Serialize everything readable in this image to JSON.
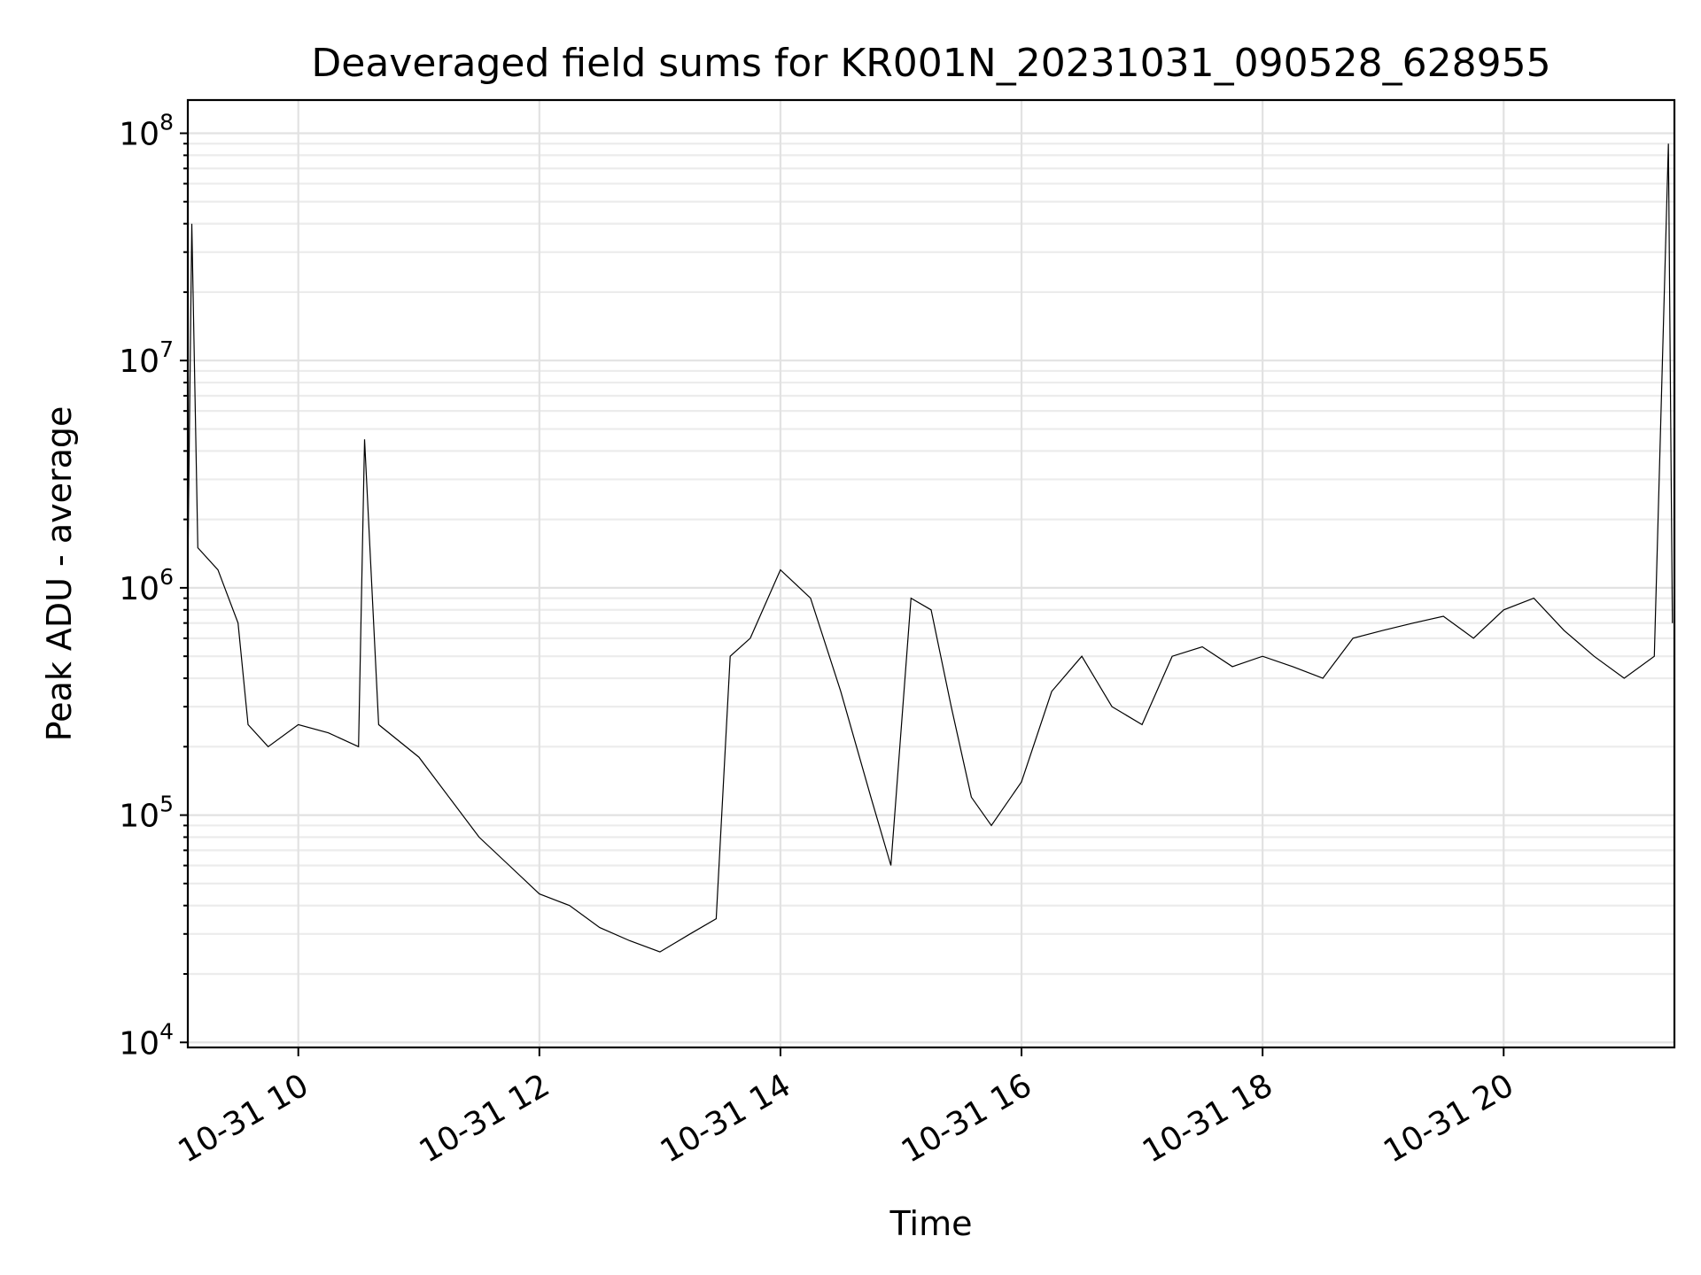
{
  "chart_data": {
    "type": "line",
    "title": "Deaveraged field sums for KR001N_20231031_090528_628955",
    "xlabel": "Time",
    "ylabel": "Peak ADU - average",
    "yscale": "log",
    "ylim": [
      9500,
      140000000
    ],
    "xlim": [
      "2023-10-31 09:05",
      "2023-10-31 21:25"
    ],
    "grid": "on",
    "x_ticks": [
      {
        "value": "2023-10-31 10:00",
        "label": "10-31 10"
      },
      {
        "value": "2023-10-31 12:00",
        "label": "10-31 12"
      },
      {
        "value": "2023-10-31 14:00",
        "label": "10-31 14"
      },
      {
        "value": "2023-10-31 16:00",
        "label": "10-31 16"
      },
      {
        "value": "2023-10-31 18:00",
        "label": "10-31 18"
      },
      {
        "value": "2023-10-31 20:00",
        "label": "10-31 20"
      }
    ],
    "y_ticks": [
      {
        "value": 10000,
        "base": "10",
        "exp": "4"
      },
      {
        "value": 100000,
        "base": "10",
        "exp": "5"
      },
      {
        "value": 1000000,
        "base": "10",
        "exp": "6"
      },
      {
        "value": 10000000,
        "base": "10",
        "exp": "7"
      },
      {
        "value": 100000000,
        "base": "10",
        "exp": "8"
      }
    ],
    "series": [
      {
        "color": "#000000",
        "x": [
          "2023-10-31 09:05",
          "2023-10-31 09:07",
          "2023-10-31 09:10",
          "2023-10-31 09:20",
          "2023-10-31 09:30",
          "2023-10-31 09:35",
          "2023-10-31 09:45",
          "2023-10-31 10:00",
          "2023-10-31 10:15",
          "2023-10-31 10:30",
          "2023-10-31 10:33",
          "2023-10-31 10:40",
          "2023-10-31 11:00",
          "2023-10-31 11:15",
          "2023-10-31 11:30",
          "2023-10-31 11:45",
          "2023-10-31 12:00",
          "2023-10-31 12:15",
          "2023-10-31 12:30",
          "2023-10-31 12:45",
          "2023-10-31 13:00",
          "2023-10-31 13:15",
          "2023-10-31 13:28",
          "2023-10-31 13:35",
          "2023-10-31 13:45",
          "2023-10-31 14:00",
          "2023-10-31 14:15",
          "2023-10-31 14:30",
          "2023-10-31 14:45",
          "2023-10-31 14:55",
          "2023-10-31 15:05",
          "2023-10-31 15:15",
          "2023-10-31 15:25",
          "2023-10-31 15:35",
          "2023-10-31 15:45",
          "2023-10-31 16:00",
          "2023-10-31 16:15",
          "2023-10-31 16:30",
          "2023-10-31 16:45",
          "2023-10-31 17:00",
          "2023-10-31 17:15",
          "2023-10-31 17:30",
          "2023-10-31 17:45",
          "2023-10-31 18:00",
          "2023-10-31 18:15",
          "2023-10-31 18:30",
          "2023-10-31 18:45",
          "2023-10-31 19:00",
          "2023-10-31 19:15",
          "2023-10-31 19:30",
          "2023-10-31 19:45",
          "2023-10-31 20:00",
          "2023-10-31 20:15",
          "2023-10-31 20:30",
          "2023-10-31 20:45",
          "2023-10-31 21:00",
          "2023-10-31 21:15",
          "2023-10-31 21:22",
          "2023-10-31 21:24"
        ],
        "y": [
          1200000,
          40000000,
          1500000,
          1200000,
          700000,
          250000,
          200000,
          250000,
          230000,
          200000,
          4500000,
          250000,
          180000,
          120000,
          80000,
          60000,
          45000,
          40000,
          32000,
          28000,
          25000,
          30000,
          35000,
          500000,
          600000,
          1200000,
          900000,
          350000,
          120000,
          60000,
          900000,
          800000,
          300000,
          120000,
          90000,
          140000,
          350000,
          500000,
          300000,
          250000,
          500000,
          550000,
          450000,
          500000,
          450000,
          400000,
          600000,
          650000,
          700000,
          750000,
          600000,
          800000,
          900000,
          650000,
          500000,
          400000,
          500000,
          90000000,
          700000
        ]
      }
    ]
  }
}
